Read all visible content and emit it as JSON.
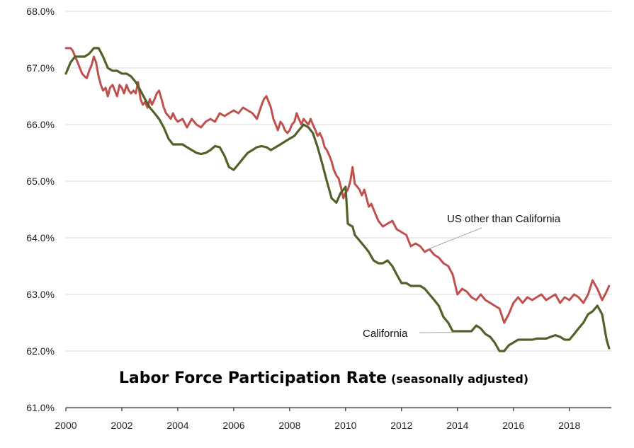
{
  "chart_data": {
    "type": "line",
    "title": "Labor Force Participation  Rate",
    "subtitle": "(seasonally adjusted)",
    "xlabel": "",
    "ylabel": "",
    "xlim": [
      2000,
      2019.5
    ],
    "ylim": [
      61.0,
      68.0
    ],
    "grid": true,
    "x_ticks": [
      "2000",
      "2002",
      "2004",
      "2006",
      "2008",
      "2010",
      "2012",
      "2014",
      "2016",
      "2018"
    ],
    "y_ticks": [
      "61.0%",
      "62.0%",
      "63.0%",
      "64.0%",
      "65.0%",
      "66.0%",
      "67.0%",
      "68.0%"
    ],
    "series": [
      {
        "name": "US other than California",
        "color": "#c0504d",
        "x": [
          2000.0,
          2000.17,
          2000.25,
          2000.33,
          2000.42,
          2000.5,
          2000.58,
          2000.67,
          2000.75,
          2000.83,
          2000.92,
          2001.0,
          2001.08,
          2001.17,
          2001.25,
          2001.33,
          2001.42,
          2001.5,
          2001.58,
          2001.67,
          2001.75,
          2001.83,
          2001.92,
          2002.0,
          2002.08,
          2002.17,
          2002.25,
          2002.33,
          2002.42,
          2002.5,
          2002.58,
          2002.67,
          2002.75,
          2002.83,
          2002.92,
          2003.0,
          2003.08,
          2003.17,
          2003.25,
          2003.33,
          2003.42,
          2003.5,
          2003.58,
          2003.67,
          2003.75,
          2003.83,
          2003.92,
          2004.0,
          2004.17,
          2004.33,
          2004.5,
          2004.67,
          2004.83,
          2005.0,
          2005.17,
          2005.33,
          2005.5,
          2005.67,
          2005.83,
          2006.0,
          2006.17,
          2006.33,
          2006.5,
          2006.67,
          2006.83,
          2007.0,
          2007.08,
          2007.17,
          2007.25,
          2007.33,
          2007.42,
          2007.5,
          2007.58,
          2007.67,
          2007.75,
          2007.83,
          2007.92,
          2008.0,
          2008.08,
          2008.17,
          2008.25,
          2008.33,
          2008.42,
          2008.5,
          2008.58,
          2008.67,
          2008.75,
          2008.83,
          2008.92,
          2009.0,
          2009.08,
          2009.17,
          2009.25,
          2009.33,
          2009.42,
          2009.5,
          2009.58,
          2009.67,
          2009.75,
          2009.83,
          2009.92,
          2010.0,
          2010.08,
          2010.17,
          2010.25,
          2010.33,
          2010.42,
          2010.5,
          2010.58,
          2010.67,
          2010.75,
          2010.83,
          2010.92,
          2011.0,
          2011.17,
          2011.33,
          2011.5,
          2011.67,
          2011.83,
          2012.0,
          2012.17,
          2012.33,
          2012.5,
          2012.67,
          2012.83,
          2013.0,
          2013.17,
          2013.33,
          2013.5,
          2013.67,
          2013.83,
          2014.0,
          2014.17,
          2014.33,
          2014.5,
          2014.67,
          2014.83,
          2015.0,
          2015.17,
          2015.33,
          2015.5,
          2015.67,
          2015.83,
          2016.0,
          2016.17,
          2016.33,
          2016.5,
          2016.67,
          2016.83,
          2017.0,
          2017.17,
          2017.33,
          2017.5,
          2017.67,
          2017.83,
          2018.0,
          2018.17,
          2018.33,
          2018.5,
          2018.67,
          2018.83,
          2019.0,
          2019.17,
          2019.33,
          2019.42
        ],
        "values": [
          67.35,
          67.35,
          67.3,
          67.2,
          67.1,
          67.0,
          66.9,
          66.85,
          66.82,
          66.95,
          67.05,
          67.2,
          67.1,
          66.85,
          66.7,
          66.6,
          66.65,
          66.5,
          66.65,
          66.7,
          66.6,
          66.5,
          66.7,
          66.65,
          66.55,
          66.7,
          66.6,
          66.55,
          66.6,
          66.55,
          66.75,
          66.45,
          66.35,
          66.4,
          66.3,
          66.45,
          66.35,
          66.45,
          66.55,
          66.6,
          66.45,
          66.3,
          66.2,
          66.15,
          66.1,
          66.2,
          66.1,
          66.05,
          66.1,
          65.95,
          66.1,
          66.0,
          65.95,
          66.05,
          66.1,
          66.05,
          66.2,
          66.15,
          66.2,
          66.25,
          66.2,
          66.3,
          66.25,
          66.2,
          66.1,
          66.35,
          66.45,
          66.5,
          66.4,
          66.3,
          66.1,
          66.0,
          65.9,
          66.05,
          66.0,
          65.9,
          65.85,
          65.9,
          66.0,
          66.05,
          66.2,
          66.1,
          66.0,
          66.1,
          66.05,
          66.0,
          66.1,
          66.0,
          65.9,
          65.8,
          65.85,
          65.75,
          65.6,
          65.55,
          65.45,
          65.35,
          65.2,
          65.1,
          65.05,
          64.9,
          64.7,
          64.8,
          64.85,
          65.0,
          65.25,
          64.95,
          64.9,
          64.85,
          64.75,
          64.85,
          64.7,
          64.55,
          64.6,
          64.5,
          64.3,
          64.2,
          64.25,
          64.3,
          64.15,
          64.1,
          64.05,
          63.85,
          63.9,
          63.85,
          63.75,
          63.8,
          63.7,
          63.65,
          63.55,
          63.5,
          63.35,
          63.0,
          63.1,
          63.05,
          62.95,
          62.9,
          63.0,
          62.9,
          62.85,
          62.8,
          62.75,
          62.5,
          62.65,
          62.85,
          62.95,
          62.85,
          62.95,
          62.9,
          62.95,
          63.0,
          62.9,
          62.95,
          63.0,
          62.85,
          62.95,
          62.9,
          63.0,
          62.95,
          62.85,
          63.0,
          63.25,
          63.1,
          62.9,
          63.05,
          63.15
        ]
      },
      {
        "name": "California",
        "color": "#4f6228",
        "x": [
          2000.0,
          2000.17,
          2000.33,
          2000.5,
          2000.67,
          2000.83,
          2001.0,
          2001.17,
          2001.33,
          2001.5,
          2001.67,
          2001.83,
          2002.0,
          2002.17,
          2002.33,
          2002.5,
          2002.67,
          2002.83,
          2003.0,
          2003.17,
          2003.33,
          2003.5,
          2003.67,
          2003.83,
          2004.0,
          2004.17,
          2004.33,
          2004.5,
          2004.67,
          2004.83,
          2005.0,
          2005.17,
          2005.33,
          2005.5,
          2005.67,
          2005.83,
          2006.0,
          2006.17,
          2006.33,
          2006.5,
          2006.67,
          2006.83,
          2007.0,
          2007.17,
          2007.33,
          2007.5,
          2007.67,
          2007.83,
          2008.0,
          2008.17,
          2008.33,
          2008.5,
          2008.67,
          2008.83,
          2009.0,
          2009.17,
          2009.33,
          2009.5,
          2009.67,
          2009.83,
          2009.92,
          2010.0,
          2010.08,
          2010.17,
          2010.25,
          2010.33,
          2010.5,
          2010.67,
          2010.83,
          2011.0,
          2011.17,
          2011.33,
          2011.5,
          2011.67,
          2011.83,
          2012.0,
          2012.17,
          2012.33,
          2012.5,
          2012.67,
          2012.83,
          2013.0,
          2013.17,
          2013.33,
          2013.5,
          2013.67,
          2013.83,
          2014.0,
          2014.17,
          2014.33,
          2014.5,
          2014.67,
          2014.83,
          2015.0,
          2015.17,
          2015.33,
          2015.5,
          2015.67,
          2015.83,
          2016.0,
          2016.17,
          2016.33,
          2016.5,
          2016.67,
          2016.83,
          2017.0,
          2017.17,
          2017.33,
          2017.5,
          2017.67,
          2017.83,
          2018.0,
          2018.17,
          2018.33,
          2018.5,
          2018.67,
          2018.83,
          2019.0,
          2019.17,
          2019.33,
          2019.42
        ],
        "values": [
          66.9,
          67.1,
          67.2,
          67.2,
          67.2,
          67.25,
          67.35,
          67.35,
          67.2,
          67.0,
          66.95,
          66.95,
          66.9,
          66.9,
          66.85,
          66.75,
          66.6,
          66.45,
          66.3,
          66.2,
          66.1,
          65.95,
          65.75,
          65.65,
          65.65,
          65.65,
          65.6,
          65.55,
          65.5,
          65.48,
          65.5,
          65.55,
          65.62,
          65.6,
          65.45,
          65.25,
          65.2,
          65.3,
          65.4,
          65.5,
          65.55,
          65.6,
          65.62,
          65.6,
          65.55,
          65.6,
          65.65,
          65.7,
          65.75,
          65.8,
          65.9,
          66.0,
          65.95,
          65.85,
          65.6,
          65.3,
          65.0,
          64.7,
          64.62,
          64.8,
          64.85,
          64.9,
          64.25,
          64.22,
          64.2,
          64.05,
          63.95,
          63.85,
          63.75,
          63.6,
          63.55,
          63.55,
          63.6,
          63.5,
          63.35,
          63.2,
          63.2,
          63.15,
          63.15,
          63.15,
          63.1,
          63.0,
          62.9,
          62.8,
          62.6,
          62.5,
          62.35,
          62.35,
          62.35,
          62.35,
          62.35,
          62.45,
          62.4,
          62.3,
          62.25,
          62.15,
          62.0,
          62.0,
          62.1,
          62.15,
          62.2,
          62.2,
          62.2,
          62.2,
          62.22,
          62.22,
          62.22,
          62.25,
          62.28,
          62.25,
          62.2,
          62.2,
          62.3,
          62.4,
          62.5,
          62.65,
          62.7,
          62.8,
          62.65,
          62.2,
          62.05
        ]
      }
    ],
    "annotations": [
      {
        "text": "US other than California",
        "series": "US other than California"
      },
      {
        "text": "California",
        "series": "California"
      }
    ]
  }
}
